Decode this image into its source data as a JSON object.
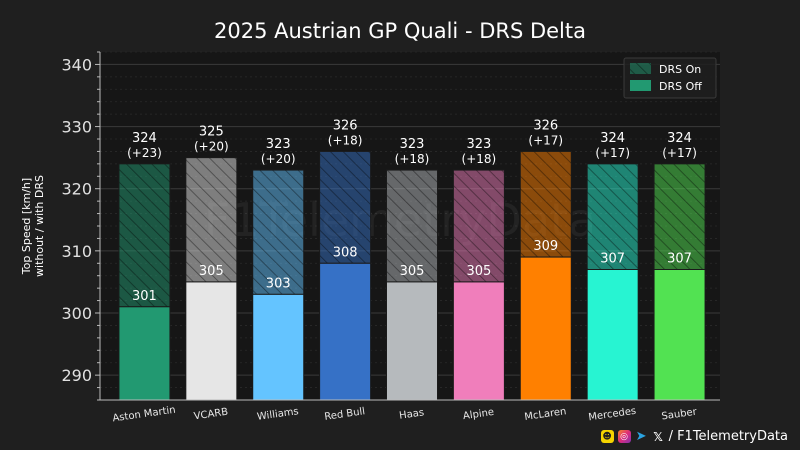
{
  "watermark": "F1TelemetryData",
  "footer": {
    "icons": [
      "snapchat-icon",
      "instagram-icon",
      "telegram-icon",
      "x-icon"
    ],
    "handle": "/ F1TelemetryData"
  },
  "chart_data": {
    "type": "bar",
    "title": "2025 Austrian GP Quali - DRS Delta",
    "ylabel_line1": "Top Speed [km/h]",
    "ylabel_line2": "without / with DRS",
    "xlabel": "",
    "ylim": [
      286,
      342
    ],
    "yticks": [
      290,
      300,
      310,
      320,
      330,
      340
    ],
    "grid": true,
    "legend_position": "top-right",
    "legend": [
      "DRS On",
      "DRS Off"
    ],
    "categories": [
      "Aston Martin",
      "VCARB",
      "Williams",
      "Red Bull",
      "Haas",
      "Alpine",
      "McLaren",
      "Mercedes",
      "Sauber"
    ],
    "series": [
      {
        "name": "DRS Off",
        "values": [
          301,
          305,
          303,
          308,
          305,
          305,
          309,
          307,
          307
        ]
      },
      {
        "name": "DRS On",
        "values": [
          324,
          325,
          323,
          326,
          323,
          323,
          326,
          324,
          324
        ]
      }
    ],
    "top_labels": [
      "324",
      "325",
      "323",
      "326",
      "323",
      "323",
      "326",
      "324",
      "324"
    ],
    "delta_labels": [
      "(+23)",
      "(+20)",
      "(+20)",
      "(+18)",
      "(+18)",
      "(+18)",
      "(+17)",
      "(+17)",
      "(+17)"
    ],
    "base_labels": [
      "301",
      "305",
      "303",
      "308",
      "305",
      "305",
      "309",
      "307",
      "307"
    ],
    "colors": [
      "#229971",
      "#e6e6e6",
      "#64c4ff",
      "#3671c6",
      "#b6babd",
      "#f07ebb",
      "#ff8000",
      "#27f4d2",
      "#52e252"
    ]
  }
}
